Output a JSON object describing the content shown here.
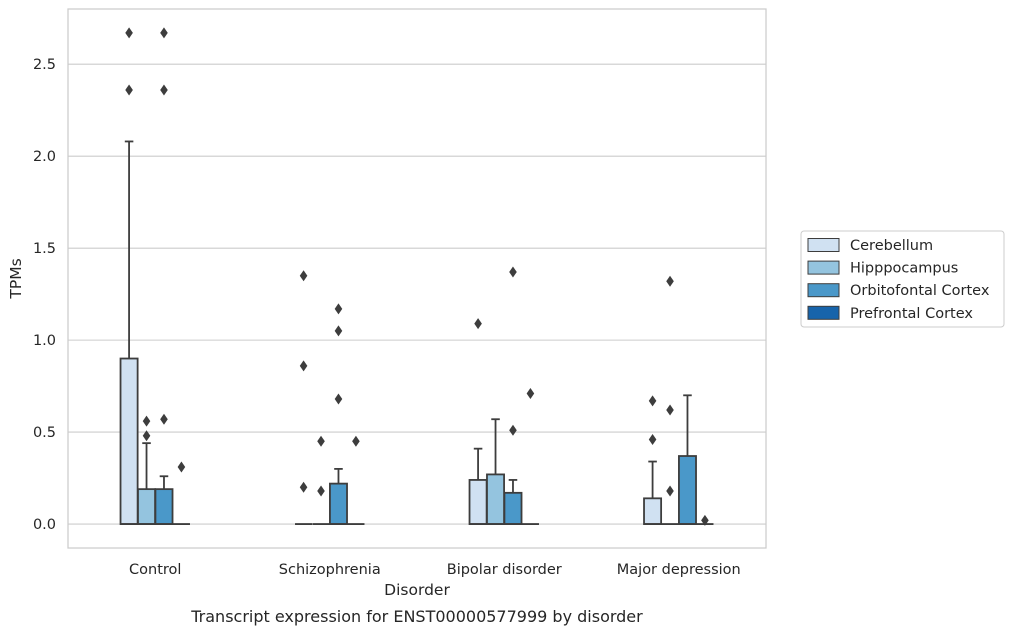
{
  "caption": "Transcript expression for ENST00000577999 by disorder",
  "chart_data": {
    "type": "box",
    "xlabel": "Disorder",
    "ylabel": "TPMs",
    "ylim": [
      -0.13,
      2.8
    ],
    "yticks": [
      0.0,
      0.5,
      1.0,
      1.5,
      2.0,
      2.5
    ],
    "ytick_labels": [
      "0.0",
      "0.5",
      "1.0",
      "1.5",
      "2.0",
      "2.5"
    ],
    "grid": "horizontal",
    "legend_position": "right",
    "categories": [
      "Control",
      "Schizophrenia",
      "Bipolar disorder",
      "Major depression"
    ],
    "series": [
      {
        "name": "Cerebellum",
        "color": "#d0e1f2",
        "boxes": [
          {
            "q1": 0.0,
            "median": 0.0,
            "q3": 0.9,
            "whislo": 0.0,
            "whishi": 2.08,
            "fliers": [
              2.36,
              2.67
            ]
          },
          {
            "q1": 0.0,
            "median": 0.0,
            "q3": 0.0,
            "whislo": 0.0,
            "whishi": 0.0,
            "fliers": [
              0.2,
              0.86,
              1.35
            ]
          },
          {
            "q1": 0.0,
            "median": 0.0,
            "q3": 0.24,
            "whislo": 0.0,
            "whishi": 0.41,
            "fliers": [
              1.09
            ]
          },
          {
            "q1": 0.0,
            "median": 0.0,
            "q3": 0.14,
            "whislo": 0.0,
            "whishi": 0.34,
            "fliers": [
              0.46,
              0.67
            ]
          }
        ]
      },
      {
        "name": "Hipppocampus",
        "color": "#94c4df",
        "boxes": [
          {
            "q1": 0.0,
            "median": 0.0,
            "q3": 0.19,
            "whislo": 0.0,
            "whishi": 0.44,
            "fliers": [
              0.48,
              0.56
            ]
          },
          {
            "q1": 0.0,
            "median": 0.0,
            "q3": 0.0,
            "whislo": 0.0,
            "whishi": 0.0,
            "fliers": [
              0.18,
              0.45
            ]
          },
          {
            "q1": 0.0,
            "median": 0.0,
            "q3": 0.27,
            "whislo": 0.0,
            "whishi": 0.57,
            "fliers": []
          },
          {
            "q1": 0.0,
            "median": 0.0,
            "q3": 0.0,
            "whislo": 0.0,
            "whishi": 0.0,
            "fliers": [
              0.18,
              0.62,
              1.32
            ]
          }
        ]
      },
      {
        "name": "Orbitofontal Cortex",
        "color": "#4a98c9",
        "boxes": [
          {
            "q1": 0.0,
            "median": 0.0,
            "q3": 0.19,
            "whislo": 0.0,
            "whishi": 0.26,
            "fliers": [
              0.57,
              2.36,
              2.67
            ]
          },
          {
            "q1": 0.0,
            "median": 0.0,
            "q3": 0.22,
            "whislo": 0.0,
            "whishi": 0.3,
            "fliers": [
              0.68,
              1.05,
              1.17
            ]
          },
          {
            "q1": 0.0,
            "median": 0.0,
            "q3": 0.17,
            "whislo": 0.0,
            "whishi": 0.24,
            "fliers": [
              0.51,
              1.37
            ]
          },
          {
            "q1": 0.0,
            "median": 0.0,
            "q3": 0.37,
            "whislo": 0.0,
            "whishi": 0.7,
            "fliers": []
          }
        ]
      },
      {
        "name": "Prefrontal Cortex",
        "color": "#1764ab",
        "boxes": [
          {
            "q1": 0.0,
            "median": 0.0,
            "q3": 0.0,
            "whislo": 0.0,
            "whishi": 0.0,
            "fliers": [
              0.31
            ]
          },
          {
            "q1": 0.0,
            "median": 0.0,
            "q3": 0.0,
            "whislo": 0.0,
            "whishi": 0.0,
            "fliers": [
              0.45
            ]
          },
          {
            "q1": 0.0,
            "median": 0.0,
            "q3": 0.0,
            "whislo": 0.0,
            "whishi": 0.0,
            "fliers": [
              0.71
            ]
          },
          {
            "q1": 0.0,
            "median": 0.0,
            "q3": 0.0,
            "whislo": 0.0,
            "whishi": 0.0,
            "fliers": [
              0.02
            ]
          }
        ]
      }
    ]
  }
}
